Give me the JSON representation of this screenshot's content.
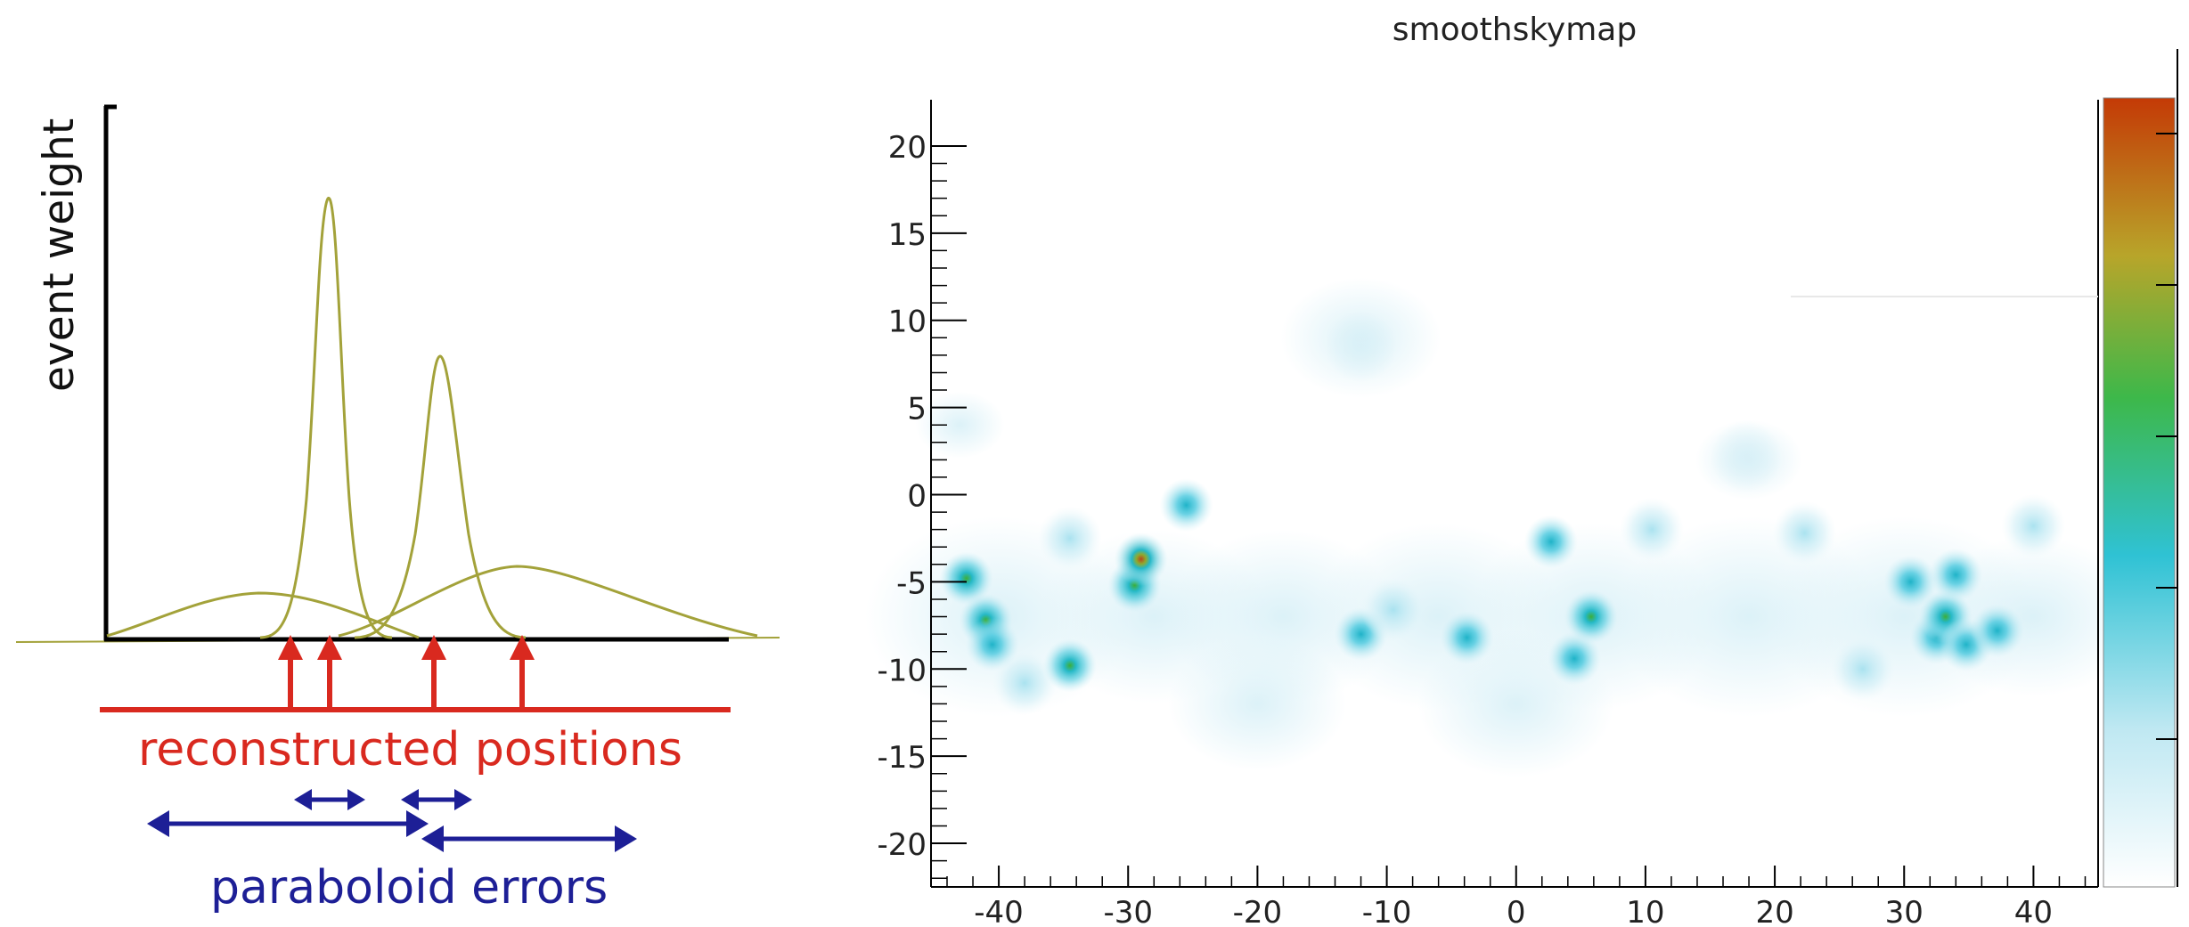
{
  "diagram": {
    "axis_label": "event weight",
    "positions_label": "reconstructed positions",
    "errors_label": "paraboloid errors",
    "curve_color": "#a3a23a",
    "arrow_red": "#d9291f",
    "arrow_blue": "#1d1f96"
  },
  "skymap": {
    "title": "smoothskymap",
    "x_ticks": [
      "-40",
      "-30",
      "-20",
      "-10",
      "0",
      "10",
      "20",
      "30",
      "40"
    ],
    "y_ticks": [
      "20",
      "15",
      "10",
      "5",
      "0",
      "-5",
      "-10",
      "-15",
      "-20"
    ],
    "xlim": [
      -44,
      45
    ],
    "ylim": [
      -22.5,
      22.5
    ],
    "colorscale": [
      "#ffffff",
      "#bfe8f2",
      "#2fc2d4",
      "#3db84a",
      "#b8a52a",
      "#c43a06"
    ]
  },
  "chart_data": {
    "type": "heatmap",
    "title": "smoothskymap",
    "xlabel": "",
    "ylabel": "",
    "xlim": [
      -44,
      45
    ],
    "ylim": [
      -22.5,
      22.5
    ],
    "colorbar": "white-cyan-green-orange-red",
    "points": [
      {
        "x": -42.5,
        "y": -4.8,
        "level": 0.55
      },
      {
        "x": -41.0,
        "y": -7.2,
        "level": 0.55
      },
      {
        "x": -40.5,
        "y": -8.6,
        "level": 0.5
      },
      {
        "x": -38.0,
        "y": -10.8,
        "level": 0.25
      },
      {
        "x": -34.5,
        "y": -9.8,
        "level": 0.55
      },
      {
        "x": -34.5,
        "y": -2.5,
        "level": 0.18
      },
      {
        "x": -29.5,
        "y": -5.2,
        "level": 0.6
      },
      {
        "x": -29.0,
        "y": -3.7,
        "level": 1.0
      },
      {
        "x": -25.5,
        "y": -0.6,
        "level": 0.45
      },
      {
        "x": -12.0,
        "y": -8.0,
        "level": 0.4
      },
      {
        "x": -9.5,
        "y": -6.6,
        "level": 0.25
      },
      {
        "x": -3.8,
        "y": -8.2,
        "level": 0.45
      },
      {
        "x": 2.7,
        "y": -2.7,
        "level": 0.45
      },
      {
        "x": 4.5,
        "y": -9.4,
        "level": 0.4
      },
      {
        "x": 5.8,
        "y": -7.0,
        "level": 0.6
      },
      {
        "x": 10.5,
        "y": -2.0,
        "level": 0.15
      },
      {
        "x": 22.3,
        "y": -2.2,
        "level": 0.2
      },
      {
        "x": 26.8,
        "y": -10.0,
        "level": 0.3
      },
      {
        "x": 30.5,
        "y": -5.0,
        "level": 0.35
      },
      {
        "x": 32.5,
        "y": -8.2,
        "level": 0.45
      },
      {
        "x": 33.2,
        "y": -7.0,
        "level": 0.6
      },
      {
        "x": 34.0,
        "y": -4.6,
        "level": 0.45
      },
      {
        "x": 34.8,
        "y": -8.6,
        "level": 0.45
      },
      {
        "x": 37.2,
        "y": -7.8,
        "level": 0.4
      },
      {
        "x": 40.0,
        "y": -1.8,
        "level": 0.15
      },
      {
        "x": 17.8,
        "y": 2.2,
        "level": 0.1
      },
      {
        "x": -12.0,
        "y": 8.5,
        "level": 0.05
      }
    ]
  }
}
